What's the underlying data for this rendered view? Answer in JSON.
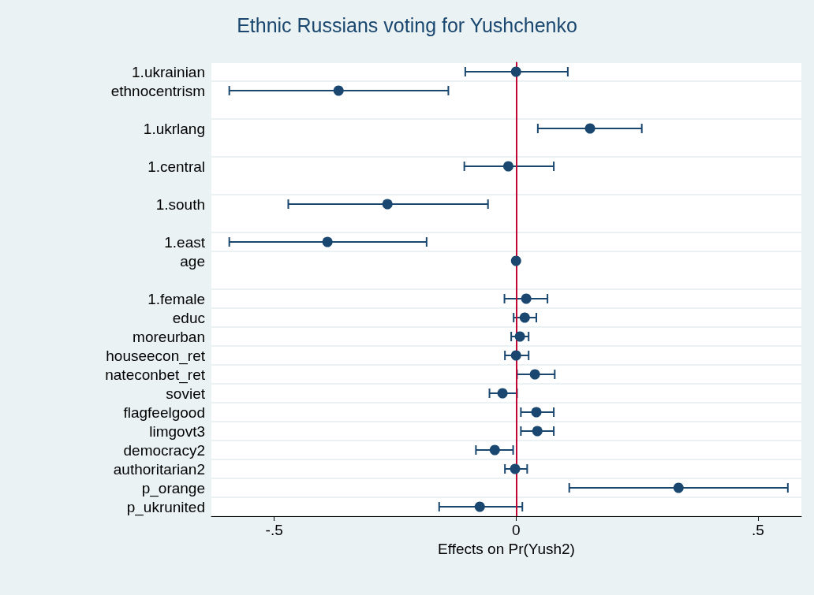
{
  "chart_data": {
    "type": "scatter",
    "orientation": "horizontal",
    "title": "Ethnic Russians voting for Yushchenko",
    "xlabel": "Effects on Pr(Yush2)",
    "categories": [
      "1.ukrainian",
      "ethnocentrism",
      null,
      "1.ukrlang",
      null,
      "1.central",
      null,
      "1.south",
      null,
      "1.east",
      "age",
      null,
      "1.female",
      "educ",
      "moreurban",
      "houseecon_ret",
      "nateconbet_ret",
      "soviet",
      "flagfeelgood",
      "limgovt3",
      "democracy2",
      "authoritarian2",
      "p_orange",
      "p_ukrunited"
    ],
    "series": [
      {
        "color": "#1a476f",
        "values": [
          0,
          -0.367,
          null,
          0.153,
          null,
          -0.016,
          null,
          -0.266,
          null,
          -0.39,
          0,
          null,
          0.021,
          0.018,
          0.008,
          0,
          0.039,
          -0.028,
          0.042,
          0.044,
          -0.044,
          -0.002,
          0.336,
          -0.075
        ],
        "errors": [
          [
            -0.105,
            0.107
          ],
          [
            -0.593,
            -0.14
          ],
          null,
          [
            0.045,
            0.26
          ],
          null,
          [
            -0.107,
            0.078
          ],
          null,
          [
            -0.471,
            -0.058
          ],
          null,
          [
            -0.593,
            -0.185
          ],
          null,
          null,
          [
            -0.024,
            0.065
          ],
          [
            -0.005,
            0.042
          ],
          [
            -0.01,
            0.026
          ],
          [
            -0.023,
            0.026
          ],
          [
            0.002,
            0.08
          ],
          [
            -0.055,
            0.002
          ],
          [
            0.01,
            0.078
          ],
          [
            0.01,
            0.078
          ],
          [
            -0.083,
            -0.006
          ],
          [
            -0.023,
            0.023
          ],
          [
            0.11,
            0.562
          ],
          [
            -0.159,
            0.013
          ]
        ]
      }
    ],
    "xlim": [
      -0.63,
      0.59
    ],
    "xticks": [
      {
        "value": -0.5,
        "label": "-.5"
      },
      0,
      {
        "value": 0.5,
        "label": ".5"
      }
    ],
    "ref_lines": [
      {
        "axis": "x",
        "value": 0,
        "color": "#c10534"
      }
    ],
    "grid": "y",
    "marker": "circle"
  }
}
